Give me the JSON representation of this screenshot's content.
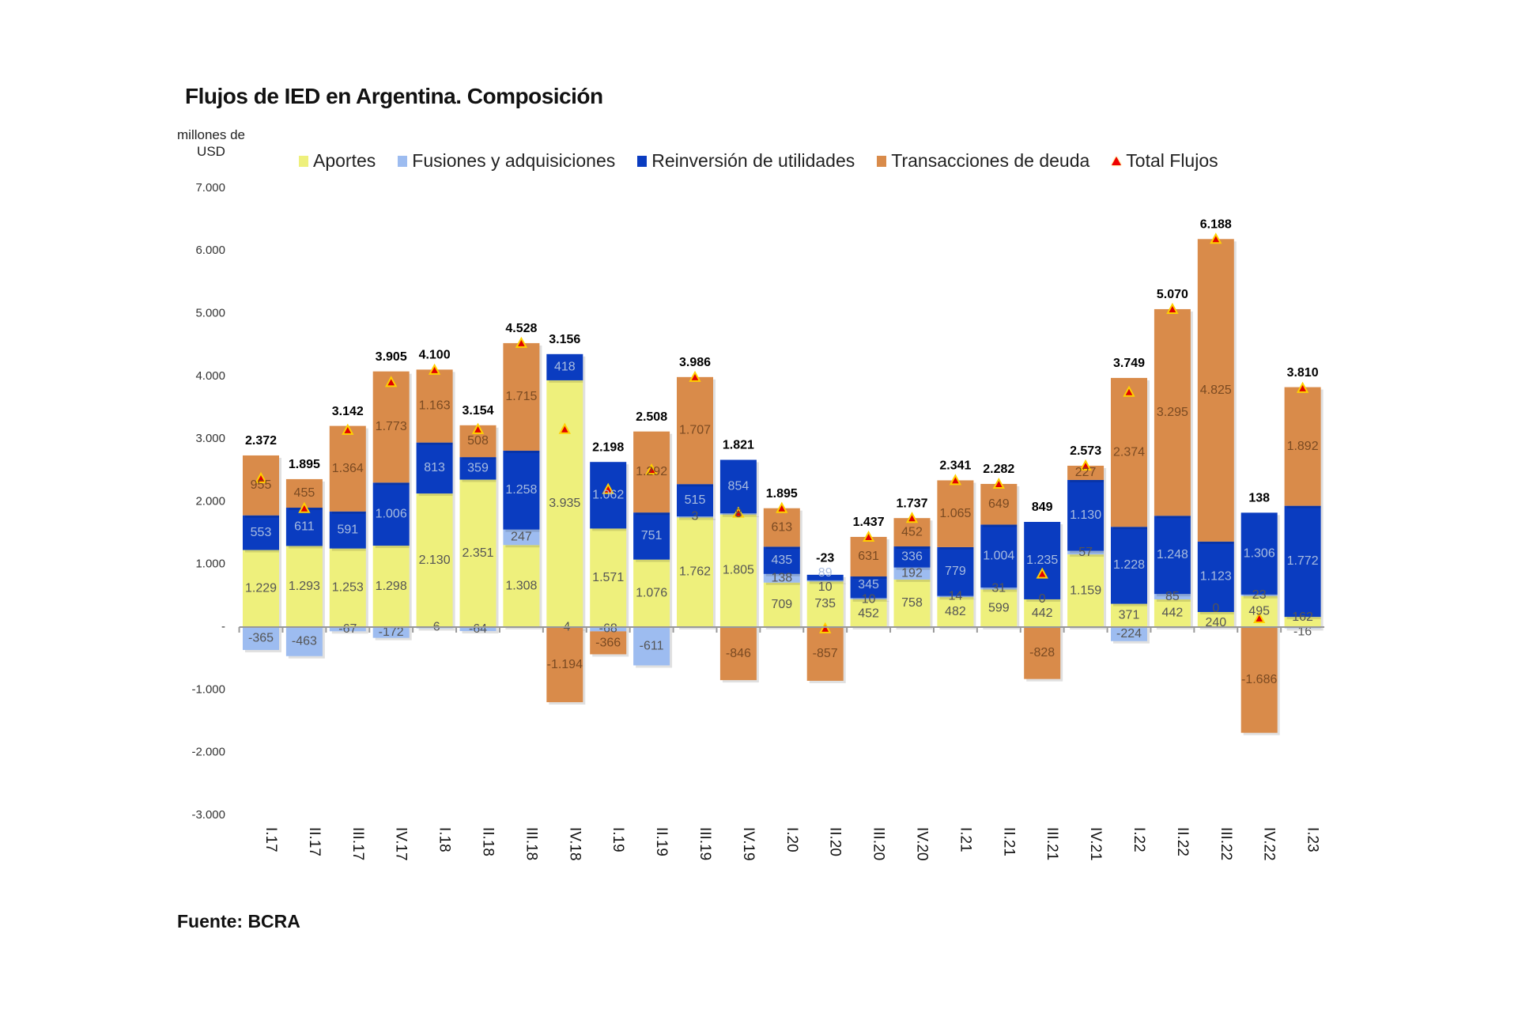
{
  "chart_data": {
    "type": "bar",
    "stacked": true,
    "title": "Flujos de IED en Argentina. Composición",
    "ylabel": "millones de USD",
    "ylim": [
      -3000,
      7000
    ],
    "yticks": [
      7000,
      6000,
      5000,
      4000,
      3000,
      2000,
      1000,
      0,
      -1000,
      -2000,
      -3000
    ],
    "ytick_labels": [
      "7.000",
      "6.000",
      "5.000",
      "4.000",
      "3.000",
      "2.000",
      "1.000",
      "-",
      "-1.000",
      "-2.000",
      "-3.000"
    ],
    "grid": false,
    "legend_position": "top",
    "categories": [
      "I.17",
      "II.17",
      "III.17",
      "IV.17",
      "I.18",
      "II.18",
      "III.18",
      "IV.18",
      "I.19",
      "II.19",
      "III.19",
      "IV.19",
      "I.20",
      "II.20",
      "III.20",
      "IV.20",
      "I.21",
      "II.21",
      "III.21",
      "IV.21",
      "I.22",
      "II.22",
      "III.22",
      "IV.22",
      "I.23"
    ],
    "series": [
      {
        "name": "Aportes",
        "color": "#eef07c",
        "values": [
          1229,
          1293,
          1253,
          1298,
          2130,
          2351,
          1308,
          3935,
          1571,
          1076,
          1762,
          1805,
          709,
          735,
          452,
          758,
          482,
          599,
          442,
          1159,
          371,
          442,
          240,
          495,
          162
        ]
      },
      {
        "name": "Fusiones y adquisiciones",
        "color": "#9dbcf0",
        "values": [
          -365,
          -463,
          -67,
          -172,
          -6,
          -64,
          247,
          -4,
          -68,
          -611,
          3,
          8,
          138,
          10,
          10,
          192,
          14,
          31,
          0,
          57,
          -224,
          85,
          0,
          23,
          -16
        ]
      },
      {
        "name": "Reinversión de utilidades",
        "color": "#0a3cc0",
        "values": [
          553,
          611,
          591,
          1006,
          813,
          359,
          1258,
          418,
          1062,
          751,
          515,
          854,
          435,
          89,
          345,
          336,
          779,
          1004,
          1235,
          1130,
          1228,
          1248,
          1123,
          1306,
          1772
        ]
      },
      {
        "name": "Transacciones de deuda",
        "color": "#d98b4a",
        "values": [
          955,
          455,
          1364,
          1773,
          1163,
          508,
          1715,
          -1194,
          -366,
          1292,
          1707,
          -846,
          613,
          -857,
          631,
          452,
          1065,
          649,
          -828,
          227,
          2374,
          3295,
          4825,
          -1686,
          1892
        ]
      },
      {
        "name": "Total Flujos",
        "type": "marker",
        "color": "#e00000",
        "values": [
          2372,
          1895,
          3142,
          3905,
          4100,
          3154,
          4528,
          3156,
          2198,
          2508,
          3986,
          1821,
          1895,
          -23,
          1437,
          1737,
          2341,
          2282,
          849,
          2573,
          3749,
          5070,
          6188,
          138,
          3810
        ]
      }
    ],
    "source": "Fuente: BCRA"
  }
}
